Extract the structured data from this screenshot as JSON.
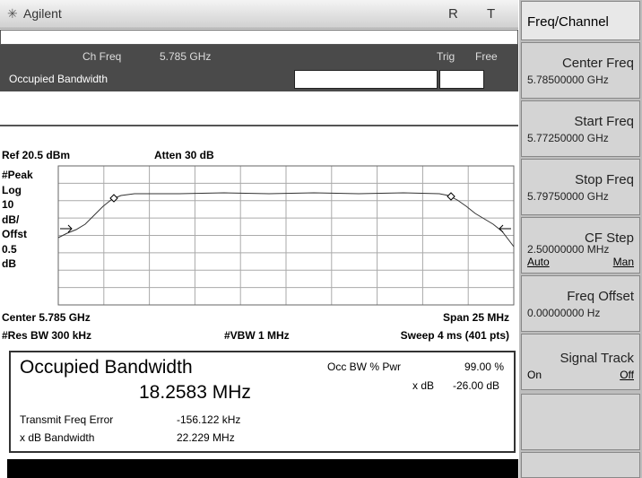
{
  "header": {
    "brand": "Agilent",
    "indicators": [
      "R",
      "T"
    ]
  },
  "status": {
    "ch_freq_label": "Ch Freq",
    "ch_freq_value": "5.785 GHz",
    "trig_label": "Trig",
    "trig_value": "Free",
    "measurement": "Occupied Bandwidth"
  },
  "graph": {
    "ref": "Ref 20.5 dBm",
    "atten": "Atten 30 dB",
    "scale_labels": [
      "#Peak",
      "Log",
      "10",
      "dB/",
      "Offst",
      "0.5",
      "dB"
    ],
    "center": "Center 5.785 GHz",
    "span": "Span 25 MHz",
    "res_bw": "#Res BW 300 kHz",
    "vbw": "#VBW 1 MHz",
    "sweep": "Sweep 4 ms (401 pts)"
  },
  "results": {
    "title": "Occupied Bandwidth",
    "bandwidth": "18.2583 MHz",
    "occ_label": "Occ BW % Pwr",
    "occ_value": "99.00 %",
    "xdb_label": "x dB",
    "xdb_value": "-26.00 dB",
    "rows": [
      [
        "Transmit Freq Error",
        "-156.122 kHz"
      ],
      [
        "x dB Bandwidth",
        "22.229 MHz"
      ]
    ]
  },
  "softkeys": {
    "menu": "Freq/Channel",
    "keys": [
      {
        "label": "Center Freq",
        "value": "5.78500000 GHz"
      },
      {
        "label": "Start Freq",
        "value": "5.77250000 GHz"
      },
      {
        "label": "Stop Freq",
        "value": "5.79750000 GHz"
      },
      {
        "label": "CF Step",
        "value": "2.50000000 MHz",
        "options": [
          "Auto",
          "Man"
        ]
      },
      {
        "label": "Freq Offset",
        "value": "0.00000000  Hz"
      },
      {
        "label": "Signal Track",
        "options": [
          "On",
          "Off"
        ]
      }
    ]
  }
}
